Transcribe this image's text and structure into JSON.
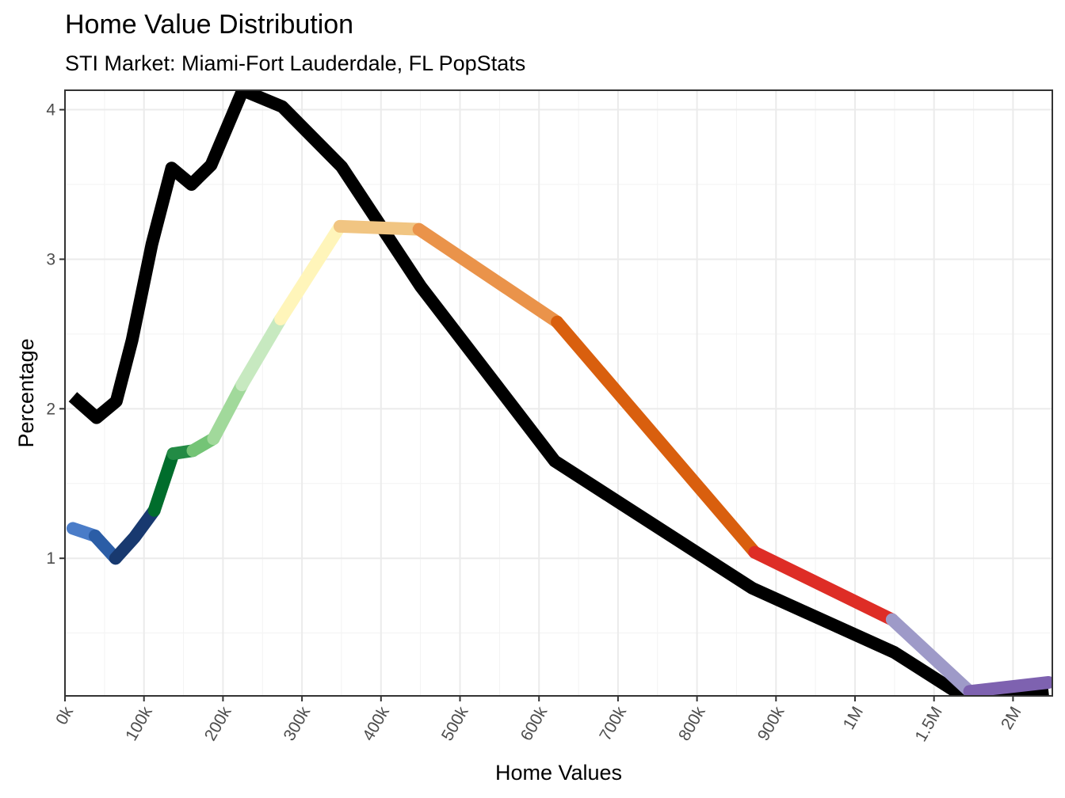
{
  "chart_data": {
    "type": "line",
    "title": "Home Value Distribution",
    "subtitle": "STI Market: Miami-Fort Lauderdale, FL PopStats",
    "xlabel": "Home Values",
    "ylabel": "Percentage",
    "x_tick_labels": [
      "0k",
      "100k",
      "200k",
      "300k",
      "400k",
      "500k",
      "600k",
      "700k",
      "800k",
      "900k",
      "1M",
      "1.5M",
      "2M"
    ],
    "y_ticks": [
      1,
      2,
      3,
      4
    ],
    "ylim": [
      0.08,
      4.13
    ],
    "grid": true,
    "legend": "none",
    "series": [
      {
        "color": "#000000",
        "x_positions": [
          0.1,
          0.4,
          0.65,
          0.85,
          1.1,
          1.35,
          1.6,
          1.85,
          2.25,
          2.75,
          3.5,
          4.5,
          6.2,
          8.7,
          10.5,
          11.45,
          12.45
        ],
        "values": [
          2.08,
          1.94,
          2.05,
          2.46,
          3.1,
          3.61,
          3.5,
          3.63,
          4.13,
          4.02,
          3.62,
          2.82,
          1.65,
          0.8,
          0.37,
          0.05,
          0.11
        ]
      },
      {
        "segments": [
          {
            "color": "#4A7CC8",
            "points": [
              [
                0.1,
                1.2
              ],
              [
                0.38,
                1.15
              ]
            ]
          },
          {
            "color": "#2B5DA6",
            "points": [
              [
                0.38,
                1.15
              ],
              [
                0.64,
                1.0
              ]
            ]
          },
          {
            "color": "#18396F",
            "points": [
              [
                0.64,
                1.0
              ],
              [
                0.88,
                1.14
              ],
              [
                1.13,
                1.32
              ]
            ]
          },
          {
            "color": "#006D2C",
            "points": [
              [
                1.13,
                1.32
              ],
              [
                1.37,
                1.7
              ]
            ]
          },
          {
            "color": "#238B45",
            "points": [
              [
                1.37,
                1.7
              ],
              [
                1.62,
                1.72
              ]
            ]
          },
          {
            "color": "#74C476",
            "points": [
              [
                1.62,
                1.72
              ],
              [
                1.88,
                1.8
              ]
            ]
          },
          {
            "color": "#A1D99B",
            "points": [
              [
                1.88,
                1.8
              ],
              [
                2.24,
                2.16
              ]
            ]
          },
          {
            "color": "#C7E9C0",
            "points": [
              [
                2.24,
                2.16
              ],
              [
                2.73,
                2.6
              ]
            ]
          },
          {
            "color": "#FFF5BA",
            "points": [
              [
                2.73,
                2.6
              ],
              [
                3.48,
                3.22
              ]
            ]
          },
          {
            "color": "#F1C582",
            "points": [
              [
                3.48,
                3.22
              ],
              [
                4.48,
                3.2
              ]
            ]
          },
          {
            "color": "#EA934A",
            "points": [
              [
                4.48,
                3.2
              ],
              [
                6.23,
                2.58
              ]
            ]
          },
          {
            "color": "#D95F0E",
            "points": [
              [
                6.23,
                2.58
              ],
              [
                8.73,
                1.04
              ]
            ]
          },
          {
            "color": "#DE2D26",
            "points": [
              [
                8.73,
                1.04
              ],
              [
                10.47,
                0.59
              ]
            ]
          },
          {
            "color": "#9E9AC8",
            "points": [
              [
                10.47,
                0.59
              ],
              [
                11.45,
                0.11
              ]
            ]
          },
          {
            "color": "#7E62B0",
            "points": [
              [
                11.45,
                0.11
              ],
              [
                12.45,
                0.17
              ]
            ]
          }
        ]
      }
    ]
  }
}
